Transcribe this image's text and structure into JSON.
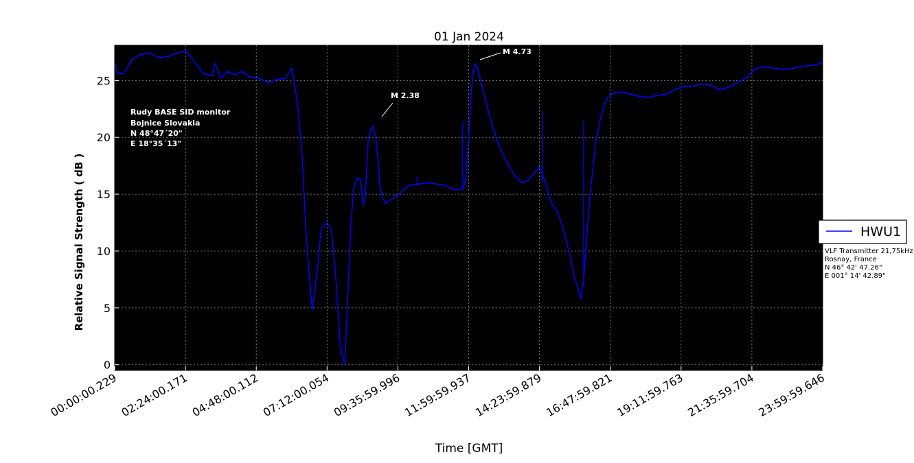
{
  "chart_data": {
    "type": "line",
    "title": "01 Jan 2024",
    "xlabel": "Time [GMT]",
    "ylabel": "Relative Signal Strength ( dB )",
    "x_tick_labels": [
      "00:00:00.229",
      "02:24:00.171",
      "04:48:00.112",
      "07:12:00.054",
      "09:35:59.996",
      "11:59:59.937",
      "14:23:59.879",
      "16:47:59.821",
      "19:11:59.763",
      "21:35:59.704",
      "23:59:59.646"
    ],
    "xlim_hours": [
      0,
      24
    ],
    "y_tick_labels": [
      "0",
      "5",
      "10",
      "15",
      "20",
      "25"
    ],
    "y_ticks": [
      0,
      5,
      10,
      15,
      20,
      25
    ],
    "ylim": [
      -0.5,
      28.1
    ],
    "grid": true,
    "background": "#000000",
    "legend_position": "right",
    "series": [
      {
        "name": "HWU1",
        "color": "#0000ff",
        "x_hours": [
          0.0,
          0.1,
          0.3,
          0.6,
          0.9,
          1.2,
          1.5,
          1.8,
          2.1,
          2.4,
          2.7,
          3.0,
          3.3,
          3.4,
          3.6,
          3.8,
          4.1,
          4.3,
          4.6,
          4.9,
          5.2,
          5.5,
          5.8,
          6.0,
          6.2,
          6.35,
          6.5,
          6.7,
          6.9,
          7.0,
          7.2,
          7.35,
          7.5,
          7.65,
          7.8,
          7.9,
          8.0,
          8.1,
          8.2,
          8.3,
          8.35,
          8.42,
          8.5,
          8.6,
          8.75,
          8.85,
          8.95,
          9.0,
          9.1,
          9.2,
          9.3,
          9.4,
          9.5,
          9.6,
          9.8,
          10.0,
          10.3,
          10.6,
          10.9,
          11.2,
          11.5,
          11.8,
          11.9,
          12.0,
          12.1,
          12.2,
          12.3,
          12.4,
          12.6,
          12.8,
          13.0,
          13.2,
          13.4,
          13.6,
          13.8,
          14.0,
          14.2,
          14.4,
          14.6,
          14.8,
          15.0,
          15.2,
          15.4,
          15.6,
          15.7,
          15.8,
          15.9,
          16.0,
          16.1,
          16.2,
          16.3,
          16.5,
          16.7,
          16.9,
          17.2,
          17.5,
          17.8,
          18.1,
          18.4,
          18.7,
          19.0,
          19.3,
          19.6,
          19.9,
          20.2,
          20.5,
          20.8,
          21.1,
          21.4,
          21.7,
          22.0,
          22.3,
          22.6,
          22.9,
          23.2,
          23.5,
          23.8,
          24.0
        ],
        "y": [
          26.5,
          25.6,
          25.6,
          26.9,
          27.3,
          27.4,
          27.0,
          27.1,
          27.4,
          27.6,
          26.7,
          25.6,
          25.4,
          26.5,
          25.2,
          25.8,
          25.5,
          25.8,
          25.3,
          25.2,
          24.8,
          25.1,
          25.2,
          26.1,
          23.0,
          18.5,
          11.0,
          4.8,
          9.0,
          12.0,
          12.5,
          11.8,
          7.5,
          1.5,
          0.0,
          6.0,
          12.0,
          15.5,
          16.3,
          16.4,
          16.0,
          14.0,
          15.0,
          20.0,
          21.0,
          20.0,
          17.5,
          15.5,
          14.6,
          14.2,
          14.4,
          14.6,
          14.8,
          14.9,
          15.4,
          15.8,
          15.9,
          16.0,
          15.9,
          15.8,
          15.4,
          15.4,
          16.3,
          20.0,
          24.5,
          26.5,
          26.1,
          25.0,
          23.0,
          21.0,
          19.5,
          18.3,
          17.3,
          16.5,
          16.0,
          16.2,
          16.8,
          17.4,
          16.0,
          14.2,
          13.5,
          12.0,
          10.0,
          7.5,
          6.8,
          5.8,
          7.5,
          11.0,
          14.5,
          17.0,
          19.5,
          22.0,
          23.5,
          23.9,
          24.0,
          23.8,
          23.6,
          23.5,
          23.7,
          23.8,
          24.2,
          24.5,
          24.5,
          24.7,
          24.6,
          24.2,
          24.4,
          24.8,
          25.2,
          26.0,
          26.2,
          26.1,
          26.0,
          26.0,
          26.2,
          26.3,
          26.4,
          26.6
        ]
      }
    ],
    "spikes": [
      {
        "x_hours": 11.8,
        "y_from": 15.4,
        "y_to": 21.4
      },
      {
        "x_hours": 14.5,
        "y_from": 16.0,
        "y_to": 22.3
      },
      {
        "x_hours": 15.9,
        "y_from": 7.0,
        "y_to": 21.5
      },
      {
        "x_hours": 10.25,
        "y_from": 15.8,
        "y_to": 16.6
      }
    ],
    "annotations": [
      {
        "text": "M 2.38",
        "x_hours": 8.85,
        "y": 21.5
      },
      {
        "text": "M 4.73",
        "x_hours": 12.4,
        "y": 26.6
      }
    ],
    "station_info": [
      "Rudy BASE SID monitor",
      "Bojnice Slovakia",
      "N 48°47´20\"",
      "E 18°35´13\""
    ],
    "transmitter_info": [
      "VLF Transmitter 21,75kHz",
      "Rosnay, France",
      "N 46° 42' 47.26\"",
      "E 001° 14' 42.89\""
    ]
  }
}
